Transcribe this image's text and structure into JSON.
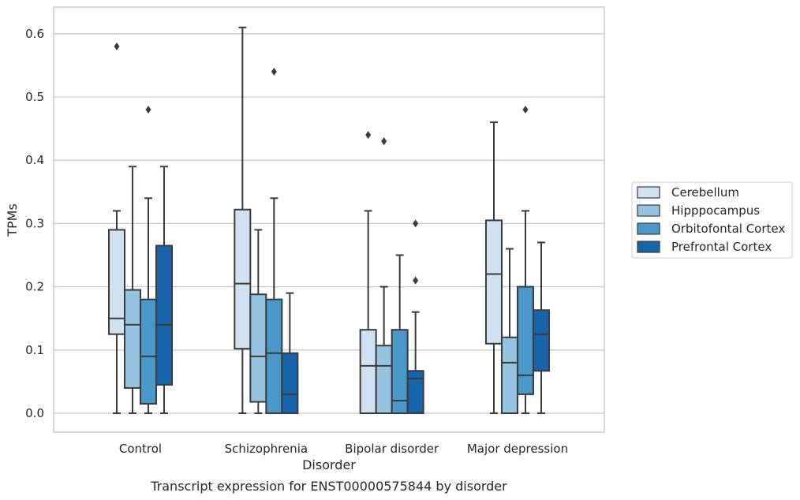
{
  "chart_data": {
    "type": "box",
    "title": "",
    "caption": "Transcript expression for ENST00000575844 by disorder",
    "xlabel": "Disorder",
    "ylabel": "TPMs",
    "ylim": [
      -0.03,
      0.64
    ],
    "yticks": [
      "0.0",
      "0.1",
      "0.2",
      "0.3",
      "0.4",
      "0.5",
      "0.6"
    ],
    "grid": "horizontal",
    "legend_position": "right",
    "categories": [
      "Control",
      "Schizophrenia",
      "Bipolar disorder",
      "Major depression"
    ],
    "series": [
      {
        "name": "Cerebellum",
        "color": "#d0e1f2",
        "boxes": [
          {
            "whisker_low": 0.0,
            "q1": 0.125,
            "median": 0.15,
            "q3": 0.29,
            "whisker_high": 0.32,
            "outliers": [
              0.58
            ]
          },
          {
            "whisker_low": 0.0,
            "q1": 0.102,
            "median": 0.205,
            "q3": 0.322,
            "whisker_high": 0.61,
            "outliers": []
          },
          {
            "whisker_low": 0.0,
            "q1": 0.0,
            "median": 0.075,
            "q3": 0.132,
            "whisker_high": 0.32,
            "outliers": [
              0.44
            ]
          },
          {
            "whisker_low": 0.0,
            "q1": 0.11,
            "median": 0.22,
            "q3": 0.305,
            "whisker_high": 0.46,
            "outliers": []
          }
        ]
      },
      {
        "name": "Hipppocampus",
        "color": "#94c4df",
        "boxes": [
          {
            "whisker_low": 0.0,
            "q1": 0.04,
            "median": 0.14,
            "q3": 0.195,
            "whisker_high": 0.39,
            "outliers": []
          },
          {
            "whisker_low": 0.0,
            "q1": 0.018,
            "median": 0.09,
            "q3": 0.188,
            "whisker_high": 0.29,
            "outliers": []
          },
          {
            "whisker_low": 0.0,
            "q1": 0.0,
            "median": 0.075,
            "q3": 0.107,
            "whisker_high": 0.2,
            "outliers": [
              0.43
            ]
          },
          {
            "whisker_low": 0.0,
            "q1": 0.0,
            "median": 0.08,
            "q3": 0.12,
            "whisker_high": 0.26,
            "outliers": []
          }
        ]
      },
      {
        "name": "Orbitofontal Cortex",
        "color": "#4a98c9",
        "boxes": [
          {
            "whisker_low": 0.0,
            "q1": 0.015,
            "median": 0.09,
            "q3": 0.18,
            "whisker_high": 0.34,
            "outliers": [
              0.48
            ]
          },
          {
            "whisker_low": 0.0,
            "q1": 0.0,
            "median": 0.095,
            "q3": 0.18,
            "whisker_high": 0.34,
            "outliers": [
              0.54
            ]
          },
          {
            "whisker_low": 0.0,
            "q1": 0.0,
            "median": 0.02,
            "q3": 0.132,
            "whisker_high": 0.25,
            "outliers": []
          },
          {
            "whisker_low": 0.0,
            "q1": 0.03,
            "median": 0.06,
            "q3": 0.2,
            "whisker_high": 0.32,
            "outliers": [
              0.48
            ]
          }
        ]
      },
      {
        "name": "Prefrontal Cortex",
        "color": "#1764ab",
        "boxes": [
          {
            "whisker_low": 0.0,
            "q1": 0.045,
            "median": 0.14,
            "q3": 0.265,
            "whisker_high": 0.39,
            "outliers": []
          },
          {
            "whisker_low": 0.0,
            "q1": 0.0,
            "median": 0.03,
            "q3": 0.095,
            "whisker_high": 0.19,
            "outliers": []
          },
          {
            "whisker_low": 0.0,
            "q1": 0.0,
            "median": 0.055,
            "q3": 0.067,
            "whisker_high": 0.16,
            "outliers": [
              0.21,
              0.3
            ]
          },
          {
            "whisker_low": 0.0,
            "q1": 0.067,
            "median": 0.125,
            "q3": 0.163,
            "whisker_high": 0.27,
            "outliers": []
          }
        ]
      }
    ]
  }
}
